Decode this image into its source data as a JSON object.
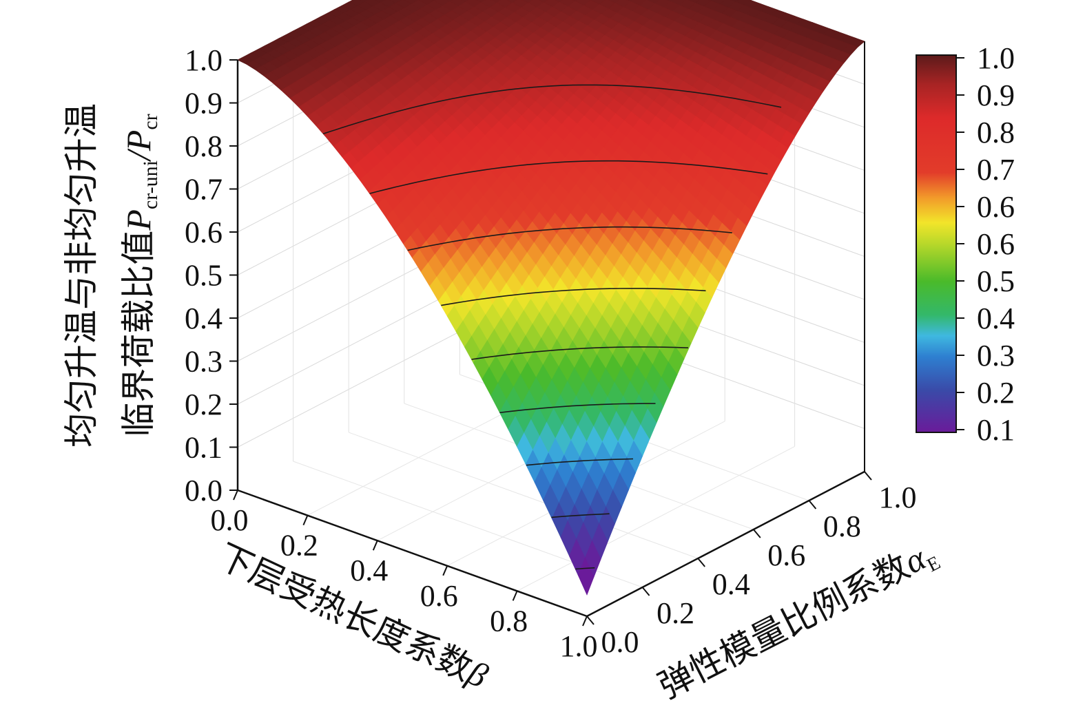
{
  "chart_data": {
    "type": "surface3d",
    "z_axis": {
      "title_line1": "均匀升温与非均匀升温",
      "title_line2_text": "临界荷载比值",
      "title_line2_sym": "P",
      "title_line2_sub": "cr-uni",
      "title_line2_sep": "/P",
      "title_line2_sub2": "cr",
      "ticks": [
        "0.0",
        "0.1",
        "0.2",
        "0.3",
        "0.4",
        "0.5",
        "0.6",
        "0.7",
        "0.8",
        "0.9",
        "1.0"
      ],
      "range": [
        0,
        1
      ]
    },
    "beta_axis": {
      "title_text": "下层受热长度系数",
      "title_sym": "β",
      "ticks": [
        "0.0",
        "0.2",
        "0.4",
        "0.6",
        "0.8",
        "1.0"
      ],
      "range": [
        0,
        1
      ]
    },
    "alpha_axis": {
      "title_text": "弹性模量比例系数",
      "title_sym": "α",
      "title_sub": "E",
      "ticks": [
        "0.0",
        "0.2",
        "0.4",
        "0.6",
        "0.8",
        "1.0"
      ],
      "range": [
        0,
        1
      ]
    },
    "colorbar": {
      "ticks": [
        "1.0",
        "0.9",
        "0.8",
        "0.7",
        "0.6",
        "0.6",
        "0.5",
        "0.4",
        "0.3",
        "0.2",
        "0.1"
      ],
      "stops": [
        {
          "v": 0.1,
          "color": "#6a1b9a"
        },
        {
          "v": 0.2,
          "color": "#3a4aa8"
        },
        {
          "v": 0.28,
          "color": "#2e7fd0"
        },
        {
          "v": 0.33,
          "color": "#3fb8e0"
        },
        {
          "v": 0.38,
          "color": "#33b86a"
        },
        {
          "v": 0.46,
          "color": "#4aba2a"
        },
        {
          "v": 0.55,
          "color": "#b8d82a"
        },
        {
          "v": 0.6,
          "color": "#f2e52a"
        },
        {
          "v": 0.66,
          "color": "#f29a2a"
        },
        {
          "v": 0.72,
          "color": "#e23c2a"
        },
        {
          "v": 0.85,
          "color": "#dd2a2a"
        },
        {
          "v": 0.93,
          "color": "#a82424"
        },
        {
          "v": 1.0,
          "color": "#5c1a1a"
        }
      ]
    },
    "surface": {
      "description_grid_beta": [
        0.0,
        0.1,
        0.2,
        0.3,
        0.4,
        0.5,
        0.6,
        0.7,
        0.8,
        0.9,
        1.0
      ],
      "contour_levels": [
        0.1,
        0.2,
        0.3,
        0.4,
        0.5,
        0.6,
        0.7,
        0.8,
        0.9
      ],
      "min_value": 0.05,
      "max_value": 1.0
    },
    "grid": true
  }
}
